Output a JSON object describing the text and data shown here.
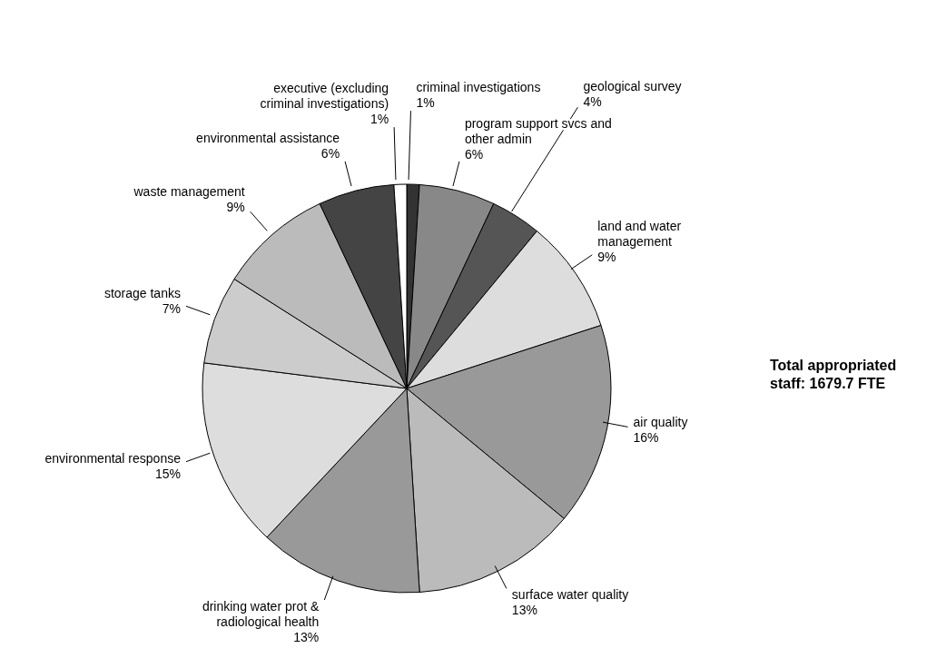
{
  "chart_data": {
    "type": "pie",
    "categories": [
      "criminal investigations",
      "program support svcs and other admin",
      "geological survey",
      "land and water management",
      "air quality",
      "surface water quality",
      "drinking water prot & radiological health",
      "environmental response",
      "storage tanks",
      "waste management",
      "environmental assistance",
      "executive (excluding criminal investigations)"
    ],
    "values": [
      1,
      6,
      4,
      9,
      16,
      13,
      13,
      15,
      7,
      9,
      6,
      1
    ],
    "value_labels": [
      "1%",
      "6%",
      "4%",
      "9%",
      "16%",
      "13%",
      "13%",
      "15%",
      "7%",
      "9%",
      "6%",
      "1%"
    ],
    "colors": [
      "#333333",
      "#888888",
      "#555555",
      "#dddddd",
      "#999999",
      "#bbbbbb",
      "#999999",
      "#dddddd",
      "#cccccc",
      "#bbbbbb",
      "#444444",
      "#ffffff"
    ],
    "annotations": [
      "Total appropriated staff: 1679.7 FTE"
    ]
  }
}
